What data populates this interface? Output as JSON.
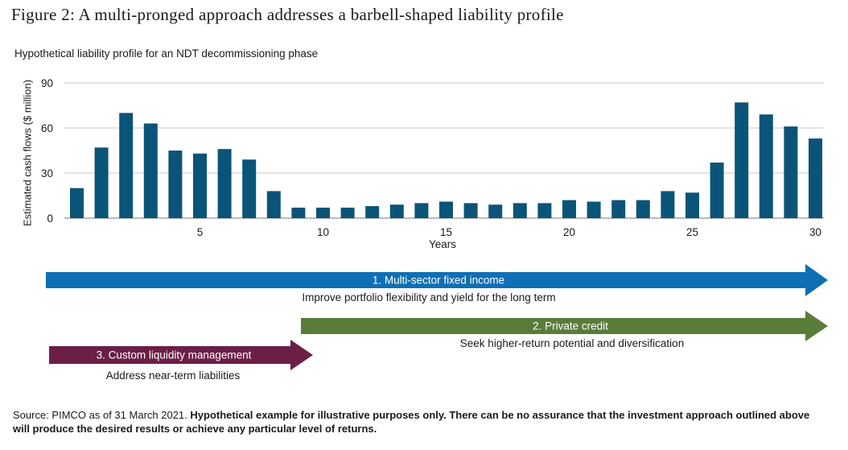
{
  "figure": {
    "title": "Figure 2: A multi-pronged approach addresses a barbell-shaped liability profile",
    "subtitle": "Hypothetical liability profile for an NDT decommissioning phase"
  },
  "chart_data": {
    "type": "bar",
    "title": "Hypothetical liability profile for an NDT decommissioning phase",
    "xlabel": "Years",
    "ylabel": "Estimated cash flows ($ million)",
    "categories": [
      0,
      1,
      2,
      3,
      4,
      5,
      6,
      7,
      8,
      9,
      10,
      11,
      12,
      13,
      14,
      15,
      16,
      17,
      18,
      19,
      20,
      21,
      22,
      23,
      24,
      25,
      26,
      27,
      28,
      29,
      30
    ],
    "values": [
      20,
      47,
      70,
      63,
      45,
      43,
      46,
      39,
      18,
      7,
      7,
      7,
      8,
      9,
      10,
      11,
      10,
      9,
      10,
      10,
      12,
      11,
      12,
      12,
      18,
      17,
      37,
      77,
      69,
      61,
      53
    ],
    "xticks": [
      5,
      10,
      15,
      20,
      25,
      30
    ],
    "yticks": [
      0,
      30,
      60,
      90
    ],
    "ylim": [
      0,
      90
    ],
    "grid": true,
    "color": "#0b5479"
  },
  "strategies": [
    {
      "label": "1. Multi-sector fixed income",
      "description": "Improve portfolio flexibility and yield for the long term",
      "color": "#0f6fb4"
    },
    {
      "label": "2. Private credit",
      "description": "Seek higher-return potential and diversification",
      "color": "#5a7c3a"
    },
    {
      "label": "3. Custom liquidity management",
      "description": "Address near-term liabilities",
      "color": "#6b1f47"
    }
  ],
  "footer": {
    "source": "Source: PIMCO as of 31 March 2021.",
    "disclaimer": "Hypothetical example for illustrative purposes only. There can be no assurance that the investment approach outlined above will produce the desired results or achieve any particular level of returns."
  }
}
